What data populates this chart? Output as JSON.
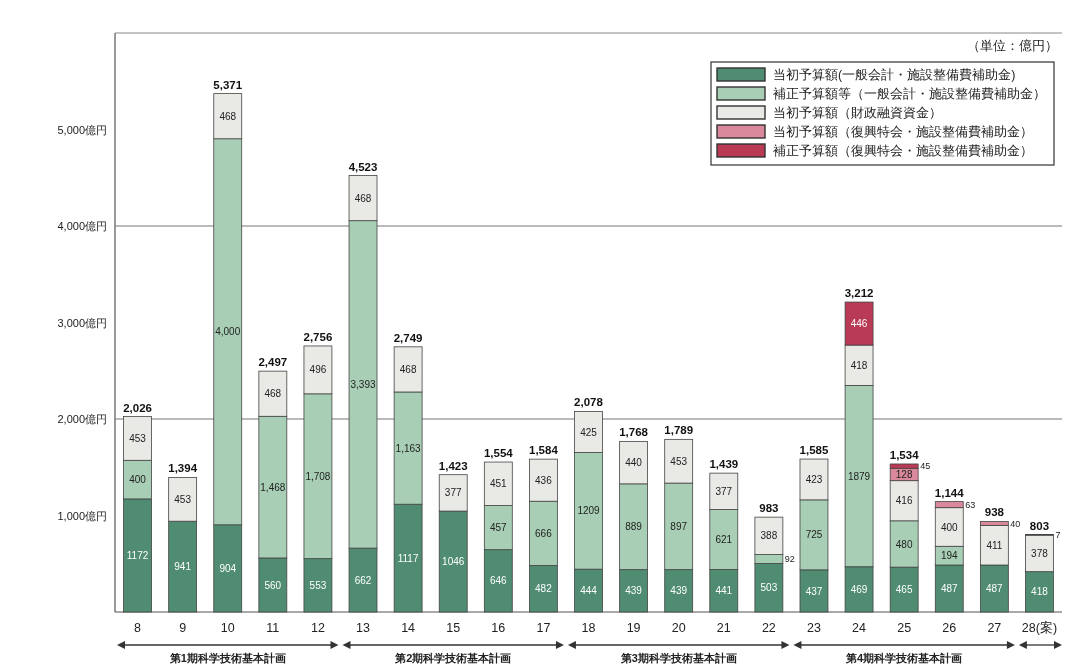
{
  "chart_data": {
    "type": "bar",
    "stacked": true,
    "categories": [
      "8",
      "9",
      "10",
      "11",
      "12",
      "13",
      "14",
      "15",
      "16",
      "17",
      "18",
      "19",
      "20",
      "21",
      "22",
      "23",
      "24",
      "25",
      "26",
      "27",
      "28(案)"
    ],
    "series": [
      {
        "name": "当初予算額(一般会計・施設整備費補助金)",
        "color": "#4f8c72",
        "values": [
          1172,
          941,
          904,
          560,
          553,
          662,
          1117,
          1046,
          646,
          482,
          444,
          439,
          439,
          441,
          503,
          437,
          469,
          465,
          487,
          487,
          418
        ],
        "value_labels": [
          "1172",
          "941",
          "904",
          "560",
          "553",
          "662",
          "1117",
          "1046",
          "646",
          "482",
          "444",
          "439",
          "439",
          "441",
          "503",
          "437",
          "469",
          "465",
          "487",
          "487",
          "418"
        ]
      },
      {
        "name": "補正予算額等（一般会計・施設整備費補助金）",
        "color": "#a8cfb5",
        "values": [
          400,
          null,
          4000,
          1468,
          1708,
          3393,
          1163,
          null,
          457,
          666,
          1209,
          889,
          897,
          621,
          92,
          725,
          1879,
          480,
          194,
          null,
          null
        ],
        "value_labels": [
          "400",
          null,
          "4,000",
          "1,468",
          "1,708",
          "3,393",
          "1,163",
          null,
          "457",
          "666",
          "1209",
          "889",
          "897",
          "621",
          "92",
          "725",
          "1879",
          "480",
          "194",
          null,
          null
        ]
      },
      {
        "name": "当初予算額（財政融資資金）",
        "color": "#e9e9e6",
        "values": [
          453,
          453,
          468,
          468,
          496,
          468,
          468,
          377,
          451,
          436,
          425,
          440,
          453,
          377,
          388,
          423,
          418,
          416,
          400,
          411,
          378
        ],
        "value_labels": [
          "453",
          "453",
          "468",
          "468",
          "496",
          "468",
          "468",
          "377",
          "451",
          "436",
          "425",
          "440",
          "453",
          "377",
          "388",
          "423",
          "418",
          "416",
          "400",
          "411",
          "378"
        ]
      },
      {
        "name": "当初予算額（復興特会・施設整備費補助金）",
        "color": "#d9899b",
        "values": [
          null,
          null,
          null,
          null,
          null,
          null,
          null,
          null,
          null,
          null,
          null,
          null,
          null,
          null,
          null,
          null,
          null,
          128,
          63,
          40,
          7
        ],
        "value_labels": [
          null,
          null,
          null,
          null,
          null,
          null,
          null,
          null,
          null,
          null,
          null,
          null,
          null,
          null,
          null,
          null,
          null,
          "128",
          "63",
          "40",
          "7"
        ]
      },
      {
        "name": "補正予算額（復興特会・施設整備費補助金）",
        "color": "#b83a55",
        "values": [
          null,
          null,
          null,
          null,
          null,
          null,
          null,
          null,
          null,
          null,
          null,
          null,
          null,
          null,
          null,
          null,
          446,
          45,
          null,
          null,
          null
        ],
        "value_labels": [
          null,
          null,
          null,
          null,
          null,
          null,
          null,
          null,
          null,
          null,
          null,
          null,
          null,
          null,
          null,
          null,
          "446",
          "45",
          null,
          null,
          null
        ]
      }
    ],
    "totals": [
      "2,026",
      "1,394",
      "5,371",
      "2,497",
      "2,756",
      "4,523",
      "2,749",
      "1,423",
      "1,554",
      "1,584",
      "2,078",
      "1,768",
      "1,789",
      "1,439",
      "983",
      "1,585",
      "3,212",
      "1,534",
      "1,144",
      "938",
      "803"
    ],
    "ylim": [
      0,
      6000
    ],
    "yticks": [
      {
        "value": 1000,
        "label": "1,000億円"
      },
      {
        "value": 2000,
        "label": "2,000億円"
      },
      {
        "value": 3000,
        "label": "3,000億円"
      },
      {
        "value": 4000,
        "label": "4,000億円"
      },
      {
        "value": 5000,
        "label": "5,000億円"
      }
    ],
    "ref_lines": [
      {
        "axis": "y",
        "value": 2000
      },
      {
        "axis": "y",
        "value": 4000
      }
    ],
    "annotations": [
      "（単位：億円）",
      "第1期科学技術基本計画",
      "第2期科学技術基本計画",
      "第3期科学技術基本計画",
      "第4期科学技術基本計画"
    ],
    "legend": "top right"
  }
}
